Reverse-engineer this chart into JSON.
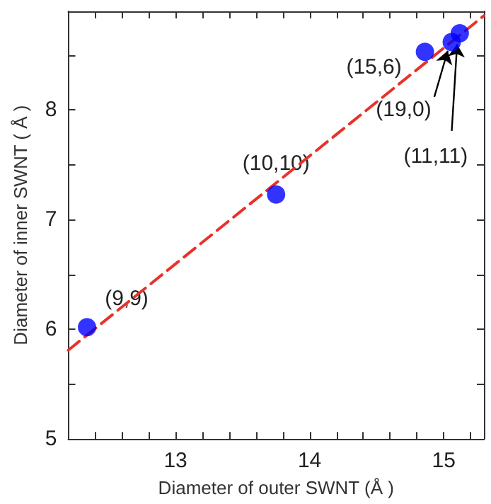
{
  "chart_data": {
    "type": "scatter",
    "xlabel": "Diameter of outer SWNT (Å )",
    "ylabel": "Diameter of inner SWNT ( Å )",
    "xlim": [
      12.2,
      15.3
    ],
    "ylim": [
      5,
      8.9
    ],
    "xticks": [
      {
        "value": 12.4,
        "label": null
      },
      {
        "value": 12.6,
        "label": null
      },
      {
        "value": 12.8,
        "label": null
      },
      13,
      {
        "value": 13.2,
        "label": null
      },
      {
        "value": 13.4,
        "label": null
      },
      {
        "value": 13.6,
        "label": null
      },
      {
        "value": 13.8,
        "label": null
      },
      14,
      {
        "value": 14.2,
        "label": null
      },
      {
        "value": 14.4,
        "label": null
      },
      {
        "value": 14.6,
        "label": null
      },
      {
        "value": 14.8,
        "label": null
      },
      15,
      {
        "value": 15.2,
        "label": null
      }
    ],
    "yticks": [
      5,
      {
        "value": 5.5,
        "label": null
      },
      6,
      {
        "value": 6.5,
        "label": null
      },
      7,
      {
        "value": 7.5,
        "label": null
      },
      8,
      {
        "value": 8.5,
        "label": null
      }
    ],
    "grid": false,
    "marker": "circle",
    "series": [
      {
        "color": "#0000ff",
        "x": [
          12.34,
          13.75,
          14.86,
          15.06,
          15.12
        ],
        "values": [
          6.02,
          7.23,
          8.53,
          8.62,
          8.7
        ]
      },
      {
        "type": "line",
        "color": "#e8322a",
        "line_style": "dashed",
        "marker": "none",
        "x": [
          12.2,
          15.3
        ],
        "values": [
          5.81,
          8.86
        ]
      }
    ],
    "annotations": [
      {
        "text": "(9,9)",
        "x": 12.34,
        "y": 6.02
      },
      {
        "text": "(10,10)",
        "x": 13.75,
        "y": 7.23
      },
      {
        "text": "(15,6)",
        "x": 14.86,
        "y": 8.53
      },
      {
        "text": "(19,0)",
        "x": 15.06,
        "y": 8.62
      },
      {
        "text": "(11,11)",
        "x": 15.12,
        "y": 8.7
      }
    ]
  }
}
